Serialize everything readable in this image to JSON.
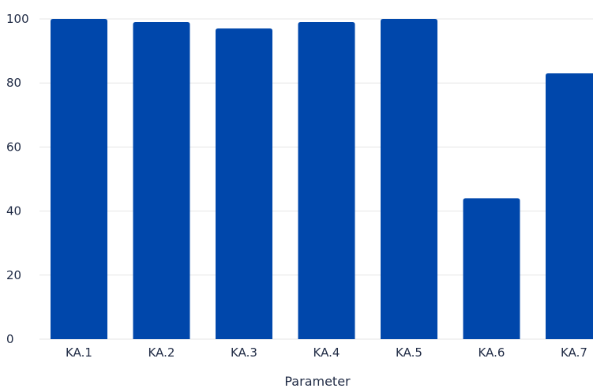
{
  "chart_data": {
    "type": "bar",
    "categories": [
      "KA.1",
      "KA.2",
      "KA.3",
      "KA.4",
      "KA.5",
      "KA.6",
      "KA.7"
    ],
    "values": [
      100,
      99,
      97,
      99,
      100,
      44,
      83
    ],
    "xlabel": "Parameter",
    "ylabel": "",
    "ylim": [
      0,
      100
    ],
    "yticks": [
      0,
      20,
      40,
      60,
      80,
      100
    ],
    "grid": true,
    "bar_color": "#0047ab",
    "grid_color": "#e6e6e6",
    "text_color": "#1f2a44"
  }
}
